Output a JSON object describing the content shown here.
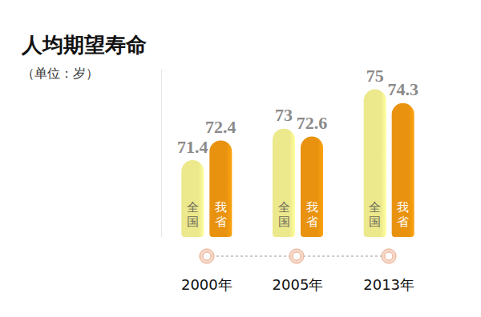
{
  "chart_data": {
    "type": "bar",
    "title": "人均期望寿命",
    "subtitle": "（单位：岁）",
    "categories": [
      "2000年",
      "2005年",
      "2013年"
    ],
    "series": [
      {
        "name": "全国",
        "color": "#ece88c",
        "values": [
          71.4,
          73,
          75
        ]
      },
      {
        "name": "我省",
        "color": "#e8920f",
        "values": [
          72.4,
          72.6,
          74.3
        ]
      }
    ],
    "ylim": [
      67.5,
      76
    ],
    "data_labels": true,
    "tick_labels": "x",
    "grid": false
  }
}
